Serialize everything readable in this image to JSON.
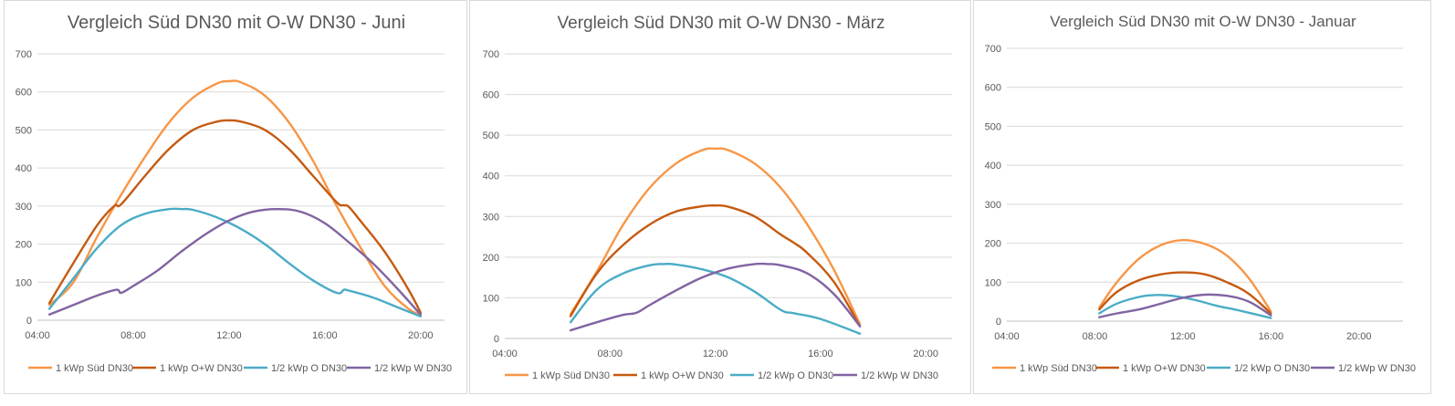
{
  "colors": {
    "sued": "#f79646",
    "ow": "#c55a11",
    "o": "#4bacc6",
    "w": "#8064a2",
    "grid": "#d9d9d9",
    "text": "#595959"
  },
  "legend": [
    "1 kWp Süd DN30",
    "1 kWp O+W DN30",
    "1/2 kWp O DN30",
    "1/2 kWp W DN30"
  ],
  "chart_data": [
    {
      "type": "line",
      "title": "Vergleich Süd DN30 mit O-W DN30 - Juni",
      "xlabel": "",
      "ylabel": "",
      "x_ticks": [
        "04:00",
        "08:00",
        "12:00",
        "16:00",
        "20:00"
      ],
      "xlim": [
        4,
        21
      ],
      "ylim": [
        0,
        700
      ],
      "y_ticks": [
        0,
        100,
        200,
        300,
        400,
        500,
        600,
        700
      ],
      "grid": true,
      "legend_position": "bottom",
      "series": [
        {
          "name": "1 kWp Süd DN30",
          "color_key": "sued",
          "points": [
            [
              4.5,
              40
            ],
            [
              5.5,
              100
            ],
            [
              6.5,
              220
            ],
            [
              7.5,
              330
            ],
            [
              8.5,
              430
            ],
            [
              9.5,
              520
            ],
            [
              10.5,
              585
            ],
            [
              11.5,
              622
            ],
            [
              12,
              628
            ],
            [
              12.5,
              625
            ],
            [
              13.5,
              590
            ],
            [
              14.5,
              520
            ],
            [
              15.5,
              420
            ],
            [
              16.5,
              300
            ],
            [
              17.5,
              190
            ],
            [
              18.5,
              90
            ],
            [
              19.5,
              30
            ],
            [
              20,
              15
            ]
          ]
        },
        {
          "name": "1 kWp O+W DN30",
          "color_key": "ow",
          "points": [
            [
              4.5,
              45
            ],
            [
              5.5,
              150
            ],
            [
              6.5,
              250
            ],
            [
              7.2,
              300
            ],
            [
              7.5,
              305
            ],
            [
              8.5,
              380
            ],
            [
              9.5,
              450
            ],
            [
              10.5,
              500
            ],
            [
              11.5,
              522
            ],
            [
              12,
              525
            ],
            [
              12.5,
              522
            ],
            [
              13.5,
              500
            ],
            [
              14.5,
              450
            ],
            [
              15.5,
              380
            ],
            [
              16.5,
              310
            ],
            [
              16.8,
              302
            ],
            [
              17,
              298
            ],
            [
              17.5,
              260
            ],
            [
              18.5,
              180
            ],
            [
              19.5,
              80
            ],
            [
              20,
              20
            ]
          ]
        },
        {
          "name": "1/2 kWp O DN30",
          "color_key": "o",
          "points": [
            [
              4.5,
              30
            ],
            [
              5.5,
              110
            ],
            [
              6.5,
              190
            ],
            [
              7.5,
              250
            ],
            [
              8.5,
              280
            ],
            [
              9.5,
              292
            ],
            [
              10,
              292
            ],
            [
              10.5,
              290
            ],
            [
              11.5,
              270
            ],
            [
              12.5,
              240
            ],
            [
              13.5,
              200
            ],
            [
              14.5,
              150
            ],
            [
              15.5,
              105
            ],
            [
              16.5,
              72
            ],
            [
              16.8,
              80
            ],
            [
              17,
              78
            ],
            [
              18,
              60
            ],
            [
              19,
              35
            ],
            [
              20,
              10
            ]
          ]
        },
        {
          "name": "1/2 kWp W DN30",
          "color_key": "w",
          "points": [
            [
              4.5,
              15
            ],
            [
              5.5,
              40
            ],
            [
              6.5,
              65
            ],
            [
              7.3,
              80
            ],
            [
              7.5,
              72
            ],
            [
              8,
              90
            ],
            [
              9,
              130
            ],
            [
              10,
              180
            ],
            [
              11,
              225
            ],
            [
              12,
              262
            ],
            [
              13,
              285
            ],
            [
              14,
              292
            ],
            [
              15,
              285
            ],
            [
              16,
              255
            ],
            [
              17,
              205
            ],
            [
              18,
              150
            ],
            [
              19,
              85
            ],
            [
              20,
              15
            ]
          ]
        }
      ]
    },
    {
      "type": "line",
      "title": "Vergleich Süd DN30 mit O-W DN30 - März",
      "xlabel": "",
      "ylabel": "",
      "x_ticks": [
        "04:00",
        "08:00",
        "12:00",
        "16:00",
        "20:00"
      ],
      "xlim": [
        4,
        21
      ],
      "ylim": [
        0,
        700
      ],
      "y_ticks": [
        0,
        100,
        200,
        300,
        400,
        500,
        600,
        700
      ],
      "grid": true,
      "legend_position": "bottom",
      "series": [
        {
          "name": "1 kWp Süd DN30",
          "color_key": "sued",
          "points": [
            [
              6.5,
              60
            ],
            [
              7.5,
              165
            ],
            [
              8.5,
              280
            ],
            [
              9.5,
              370
            ],
            [
              10.5,
              430
            ],
            [
              11.5,
              463
            ],
            [
              12,
              467
            ],
            [
              12.5,
              463
            ],
            [
              13.5,
              430
            ],
            [
              14.5,
              370
            ],
            [
              15.5,
              280
            ],
            [
              16.5,
              170
            ],
            [
              17.5,
              35
            ]
          ]
        },
        {
          "name": "1 kWp O+W DN30",
          "color_key": "ow",
          "points": [
            [
              6.5,
              55
            ],
            [
              7.5,
              160
            ],
            [
              8.5,
              230
            ],
            [
              9.5,
              280
            ],
            [
              10.5,
              312
            ],
            [
              11.5,
              325
            ],
            [
              12,
              327
            ],
            [
              12.5,
              324
            ],
            [
              13.5,
              300
            ],
            [
              14.5,
              255
            ],
            [
              15,
              235
            ],
            [
              15.5,
              210
            ],
            [
              16.5,
              140
            ],
            [
              17.5,
              30
            ]
          ]
        },
        {
          "name": "1/2 kWp O DN30",
          "color_key": "o",
          "points": [
            [
              6.5,
              40
            ],
            [
              7.5,
              120
            ],
            [
              8.5,
              160
            ],
            [
              9.5,
              180
            ],
            [
              10,
              183
            ],
            [
              10.5,
              182
            ],
            [
              11.5,
              170
            ],
            [
              12.5,
              150
            ],
            [
              13.5,
              115
            ],
            [
              14.5,
              70
            ],
            [
              15,
              62
            ],
            [
              16,
              48
            ],
            [
              17.5,
              12
            ]
          ]
        },
        {
          "name": "1/2 kWp W DN30",
          "color_key": "w",
          "points": [
            [
              6.5,
              20
            ],
            [
              7.5,
              40
            ],
            [
              8.5,
              58
            ],
            [
              9,
              63
            ],
            [
              9.5,
              82
            ],
            [
              10.5,
              118
            ],
            [
              11.5,
              150
            ],
            [
              12.5,
              172
            ],
            [
              13.5,
              183
            ],
            [
              14,
              183
            ],
            [
              14.5,
              180
            ],
            [
              15.5,
              160
            ],
            [
              16.5,
              110
            ],
            [
              17.5,
              30
            ]
          ]
        }
      ]
    },
    {
      "type": "line",
      "title": "Vergleich Süd DN30 mit O-W DN30 - Januar",
      "xlabel": "",
      "ylabel": "",
      "x_ticks": [
        "04:00",
        "08:00",
        "12:00",
        "16:00",
        "20:00"
      ],
      "xlim": [
        4,
        22
      ],
      "ylim": [
        0,
        700
      ],
      "y_ticks": [
        0,
        100,
        200,
        300,
        400,
        500,
        600,
        700
      ],
      "grid": true,
      "legend_position": "bottom",
      "series": [
        {
          "name": "1 kWp Süd DN30",
          "color_key": "sued",
          "points": [
            [
              8.2,
              35
            ],
            [
              9,
              100
            ],
            [
              10,
              160
            ],
            [
              11,
              195
            ],
            [
              12,
              208
            ],
            [
              13,
              198
            ],
            [
              14,
              168
            ],
            [
              15,
              110
            ],
            [
              16,
              25
            ]
          ]
        },
        {
          "name": "1 kWp O+W DN30",
          "color_key": "ow",
          "points": [
            [
              8.2,
              30
            ],
            [
              9,
              75
            ],
            [
              10,
              105
            ],
            [
              11,
              120
            ],
            [
              12,
              125
            ],
            [
              13,
              120
            ],
            [
              14,
              100
            ],
            [
              15,
              70
            ],
            [
              16,
              20
            ]
          ]
        },
        {
          "name": "1/2 kWp O DN30",
          "color_key": "o",
          "points": [
            [
              8.2,
              20
            ],
            [
              9,
              45
            ],
            [
              10,
              62
            ],
            [
              10.7,
              67
            ],
            [
              11.5,
              65
            ],
            [
              12.5,
              55
            ],
            [
              13.5,
              40
            ],
            [
              14.5,
              28
            ],
            [
              16,
              8
            ]
          ]
        },
        {
          "name": "1/2 kWp W DN30",
          "color_key": "w",
          "points": [
            [
              8.2,
              10
            ],
            [
              9,
              20
            ],
            [
              10,
              30
            ],
            [
              11,
              45
            ],
            [
              12,
              60
            ],
            [
              13,
              68
            ],
            [
              14,
              65
            ],
            [
              15,
              50
            ],
            [
              16,
              15
            ]
          ]
        }
      ]
    }
  ]
}
